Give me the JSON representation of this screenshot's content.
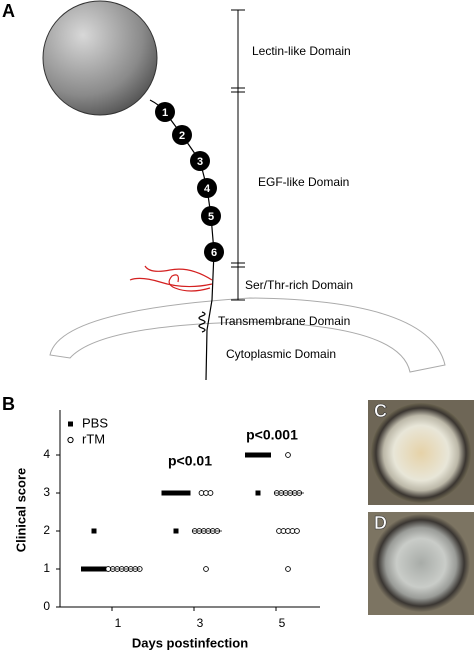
{
  "panel_a": {
    "label": "A",
    "domains": [
      "Lectin-like Domain",
      "EGF-like Domain",
      "Ser/Thr-rich Domain",
      "Transmembrane Domain",
      "Cytoplasmic Domain"
    ],
    "repeats": [
      "1",
      "2",
      "3",
      "4",
      "5",
      "6"
    ]
  },
  "chart_data": {
    "type": "scatter",
    "panel_label": "B",
    "x_label": "Days postinfection",
    "y_label": "Clinical score",
    "categories": [
      "1",
      "3",
      "5"
    ],
    "ylim": [
      0,
      5
    ],
    "yticks": [
      0,
      1,
      2,
      3,
      4
    ],
    "legend": "upper left",
    "series": [
      {
        "name": "PBS",
        "marker": "square",
        "color": "#000000",
        "values": [
          [
            1,
            1,
            1,
            1,
            1,
            1,
            1,
            1,
            2
          ],
          [
            3,
            3,
            3,
            3,
            3,
            3,
            3,
            3,
            3,
            2
          ],
          [
            4,
            4,
            4,
            4,
            4,
            4,
            4,
            4,
            3
          ]
        ]
      },
      {
        "name": "rTM",
        "marker": "circle",
        "color": "#000000",
        "values": [
          [
            1,
            1,
            1,
            1,
            1,
            1,
            1,
            1
          ],
          [
            3,
            3,
            3,
            2,
            2,
            2,
            2,
            2,
            2,
            1
          ],
          [
            4,
            3,
            3,
            3,
            3,
            3,
            3,
            2,
            2,
            2,
            2,
            2,
            1
          ]
        ],
        "medians": [
          1,
          2,
          3
        ]
      }
    ],
    "annotations": [
      "p<0.01",
      "p<0.001"
    ]
  },
  "panel_c": {
    "label": "C"
  },
  "panel_d": {
    "label": "D"
  }
}
